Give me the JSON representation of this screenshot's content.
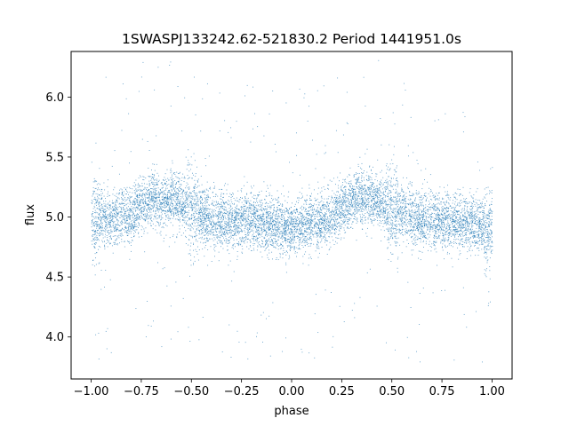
{
  "chart_data": {
    "type": "scatter",
    "title": "1SWASPJ133242.62-521830.2 Period 1441951.0s",
    "xlabel": "phase",
    "ylabel": "flux",
    "xlim": [
      -1.1,
      1.1
    ],
    "ylim": [
      3.65,
      6.38
    ],
    "xticks": [
      -1.0,
      -0.75,
      -0.5,
      -0.25,
      0.0,
      0.25,
      0.5,
      0.75,
      1.0
    ],
    "xtick_labels": [
      "−1.00",
      "−0.75",
      "−0.50",
      "−0.25",
      "0.00",
      "0.25",
      "0.50",
      "0.75",
      "1.00"
    ],
    "yticks": [
      4.0,
      4.5,
      5.0,
      5.5,
      6.0
    ],
    "ytick_labels": [
      "4.0",
      "4.5",
      "5.0",
      "5.5",
      "6.0"
    ],
    "grid": false,
    "marker_color": "#1f77b4",
    "series": [
      {
        "x_range": [
          -1.0,
          1.0
        ],
        "approx_point_count": 30000,
        "baseline_flux": 5.0,
        "core_flux_range": [
          4.7,
          5.35
        ],
        "flux_extremes": [
          3.78,
          6.32
        ],
        "points": [
          [
            -1.0,
            4.95
          ],
          [
            -0.95,
            5.0
          ],
          [
            -0.9,
            4.98
          ],
          [
            -0.85,
            5.02
          ],
          [
            -0.8,
            5.0
          ],
          [
            -0.75,
            5.1
          ],
          [
            -0.7,
            5.15
          ],
          [
            -0.65,
            5.12
          ],
          [
            -0.6,
            5.18
          ],
          [
            -0.55,
            5.12
          ],
          [
            -0.5,
            5.05
          ],
          [
            -0.45,
            5.02
          ],
          [
            -0.4,
            5.0
          ],
          [
            -0.35,
            4.98
          ],
          [
            -0.3,
            4.95
          ],
          [
            -0.25,
            4.97
          ],
          [
            -0.2,
            4.98
          ],
          [
            -0.15,
            4.96
          ],
          [
            -0.1,
            4.95
          ],
          [
            -0.05,
            4.92
          ],
          [
            0.0,
            4.9
          ],
          [
            0.05,
            4.93
          ],
          [
            0.1,
            4.96
          ],
          [
            0.15,
            4.98
          ],
          [
            0.2,
            5.0
          ],
          [
            0.25,
            5.08
          ],
          [
            0.3,
            5.15
          ],
          [
            0.35,
            5.18
          ],
          [
            0.4,
            5.15
          ],
          [
            0.45,
            5.12
          ],
          [
            0.5,
            5.05
          ],
          [
            0.55,
            5.02
          ],
          [
            0.6,
            5.0
          ],
          [
            0.65,
            4.98
          ],
          [
            0.7,
            4.97
          ],
          [
            0.75,
            4.96
          ],
          [
            0.8,
            4.97
          ],
          [
            0.85,
            4.96
          ],
          [
            0.9,
            4.95
          ],
          [
            0.95,
            4.93
          ],
          [
            1.0,
            4.92
          ]
        ]
      }
    ]
  }
}
